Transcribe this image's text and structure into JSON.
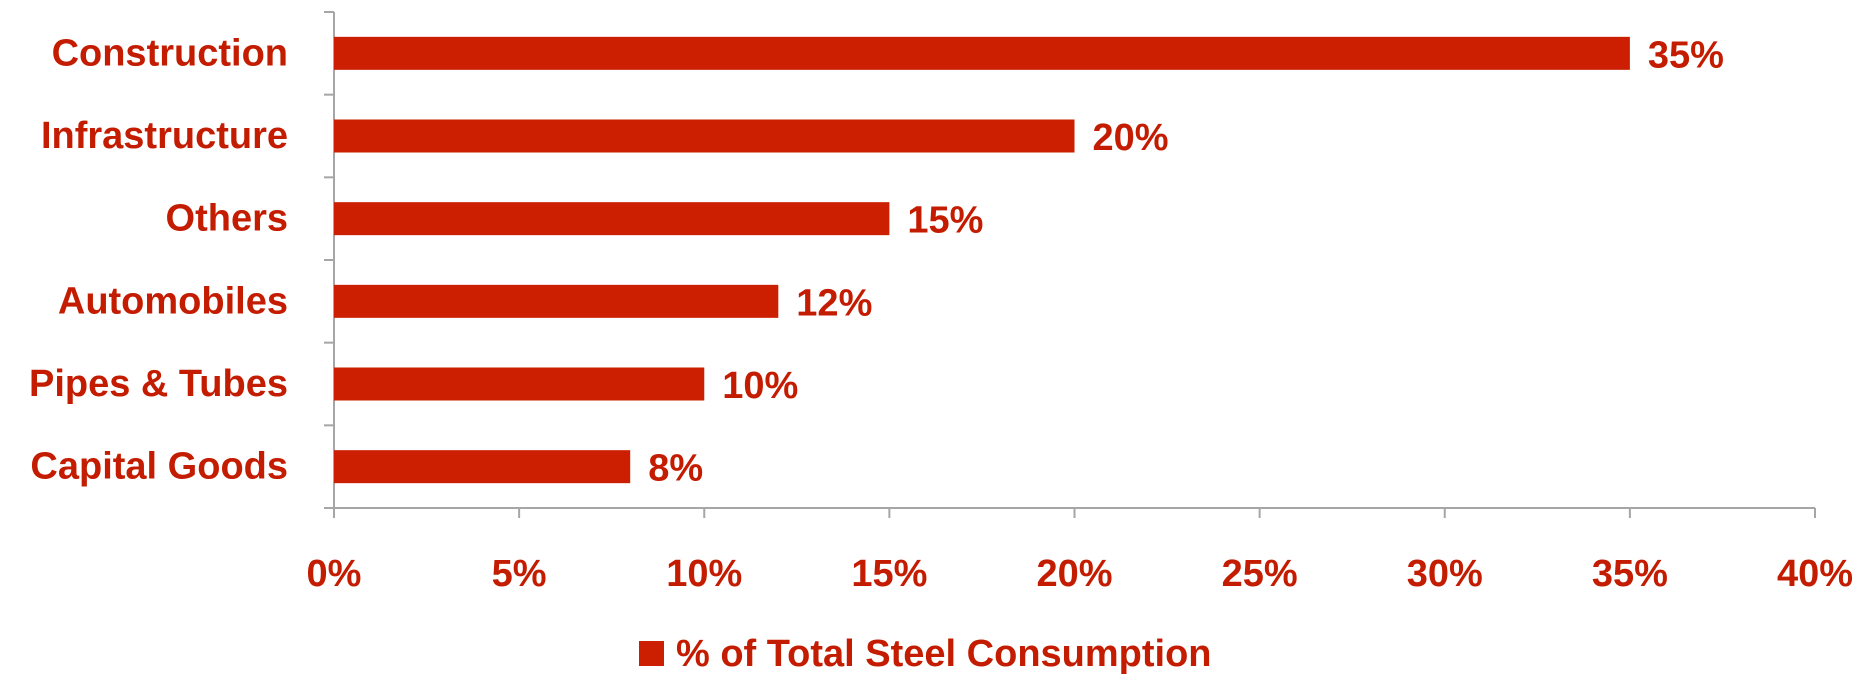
{
  "chart_data": {
    "type": "barh",
    "categories": [
      "Construction",
      "Infrastructure",
      "Others",
      "Automobiles",
      "Pipes & Tubes",
      "Capital Goods"
    ],
    "series": [
      {
        "name": "% of Total Steel Consumption",
        "color": "#cc1e00",
        "values": [
          35,
          20,
          15,
          12,
          10,
          8
        ],
        "value_labels": [
          "35%",
          "20%",
          "15%",
          "12%",
          "10%",
          "8%"
        ]
      }
    ],
    "xlim": [
      0,
      40
    ],
    "xticks": [
      {
        "value": 0,
        "label": "0%"
      },
      {
        "value": 5,
        "label": "5%"
      },
      {
        "value": 10,
        "label": "10%"
      },
      {
        "value": 15,
        "label": "15%"
      },
      {
        "value": 20,
        "label": "20%"
      },
      {
        "value": 25,
        "label": "25%"
      },
      {
        "value": 30,
        "label": "30%"
      },
      {
        "value": 35,
        "label": "35%"
      },
      {
        "value": 40,
        "label": "40%"
      }
    ],
    "grid": false,
    "legend": "bottom"
  }
}
